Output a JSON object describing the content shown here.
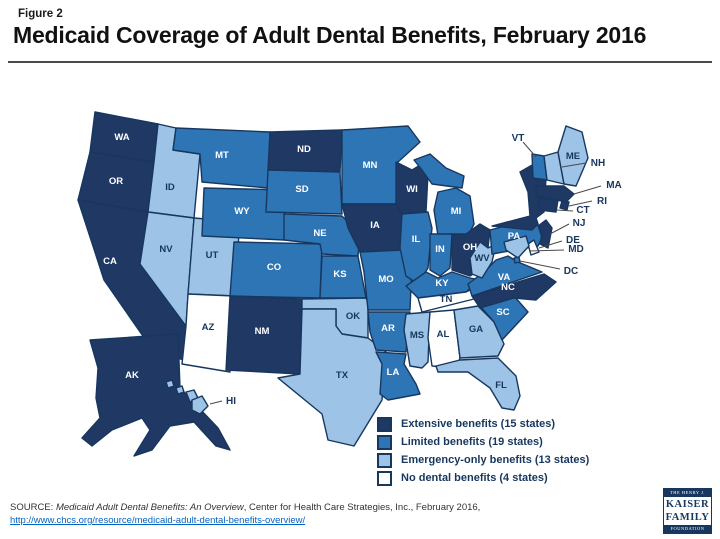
{
  "header": {
    "figure_label": "Figure 2",
    "title": "Medicaid Coverage of Adult Dental Benefits, February 2016"
  },
  "legend": {
    "items": [
      {
        "label": "Extensive benefits (15 states)",
        "color": "#1F3864"
      },
      {
        "label": "Limited benefits (19 states)",
        "color": "#2E75B6"
      },
      {
        "label": "Emergency-only benefits (13 states)",
        "color": "#9DC3E6"
      },
      {
        "label": "No dental benefits (4 states)",
        "color": "#FFFFFF"
      }
    ]
  },
  "source": {
    "prefix": "SOURCE: ",
    "work": "Medicaid Adult Dental Benefits: An Overview",
    "suffix": ", Center for Health Care Strategies, Inc., February 2016,",
    "link": "http://www.chcs.org/resource/medicaid-adult-dental-benefits-overview/"
  },
  "logo": {
    "line1": "THE HENRY J.",
    "line2": "KAISER",
    "line3": "FAMILY",
    "line4": "FOUNDATION"
  },
  "chart_data": {
    "type": "choropleth_map",
    "title": "Medicaid Coverage of Adult Dental Benefits, February 2016",
    "legend_position": "bottom-right",
    "map_stroke_color": "#17375E",
    "categories": [
      {
        "name": "Extensive benefits",
        "count": 15,
        "color": "#1F3864",
        "label_text_color": "#FFFFFF",
        "states": [
          "WA",
          "OR",
          "CA",
          "AK",
          "ND",
          "WI",
          "IA",
          "OH",
          "NY",
          "NJ",
          "CT",
          "RI",
          "MA",
          "NM",
          "NC"
        ]
      },
      {
        "name": "Limited benefits",
        "count": 19,
        "color": "#2E75B6",
        "label_text_color": "#FFFFFF",
        "states": [
          "MT",
          "WY",
          "SD",
          "NE",
          "CO",
          "KS",
          "MN",
          "MO",
          "AR",
          "LA",
          "IL",
          "IN",
          "MI",
          "KY",
          "VA",
          "PA",
          "SC",
          "VT",
          "DC"
        ]
      },
      {
        "name": "Emergency-only benefits",
        "count": 13,
        "color": "#9DC3E6",
        "label_text_color": "#17375E",
        "states": [
          "ID",
          "NV",
          "UT",
          "OK",
          "TX",
          "MS",
          "WV",
          "GA",
          "FL",
          "HI",
          "ME",
          "NH",
          "MD"
        ]
      },
      {
        "name": "No dental benefits",
        "count": 4,
        "color": "#FFFFFF",
        "label_text_color": "#17375E",
        "states": [
          "AZ",
          "AL",
          "TN",
          "DE"
        ]
      }
    ],
    "callout_labeled_states": [
      "VT",
      "NH",
      "MA",
      "RI",
      "CT",
      "NJ",
      "DE",
      "MD",
      "DC",
      "HI"
    ]
  }
}
